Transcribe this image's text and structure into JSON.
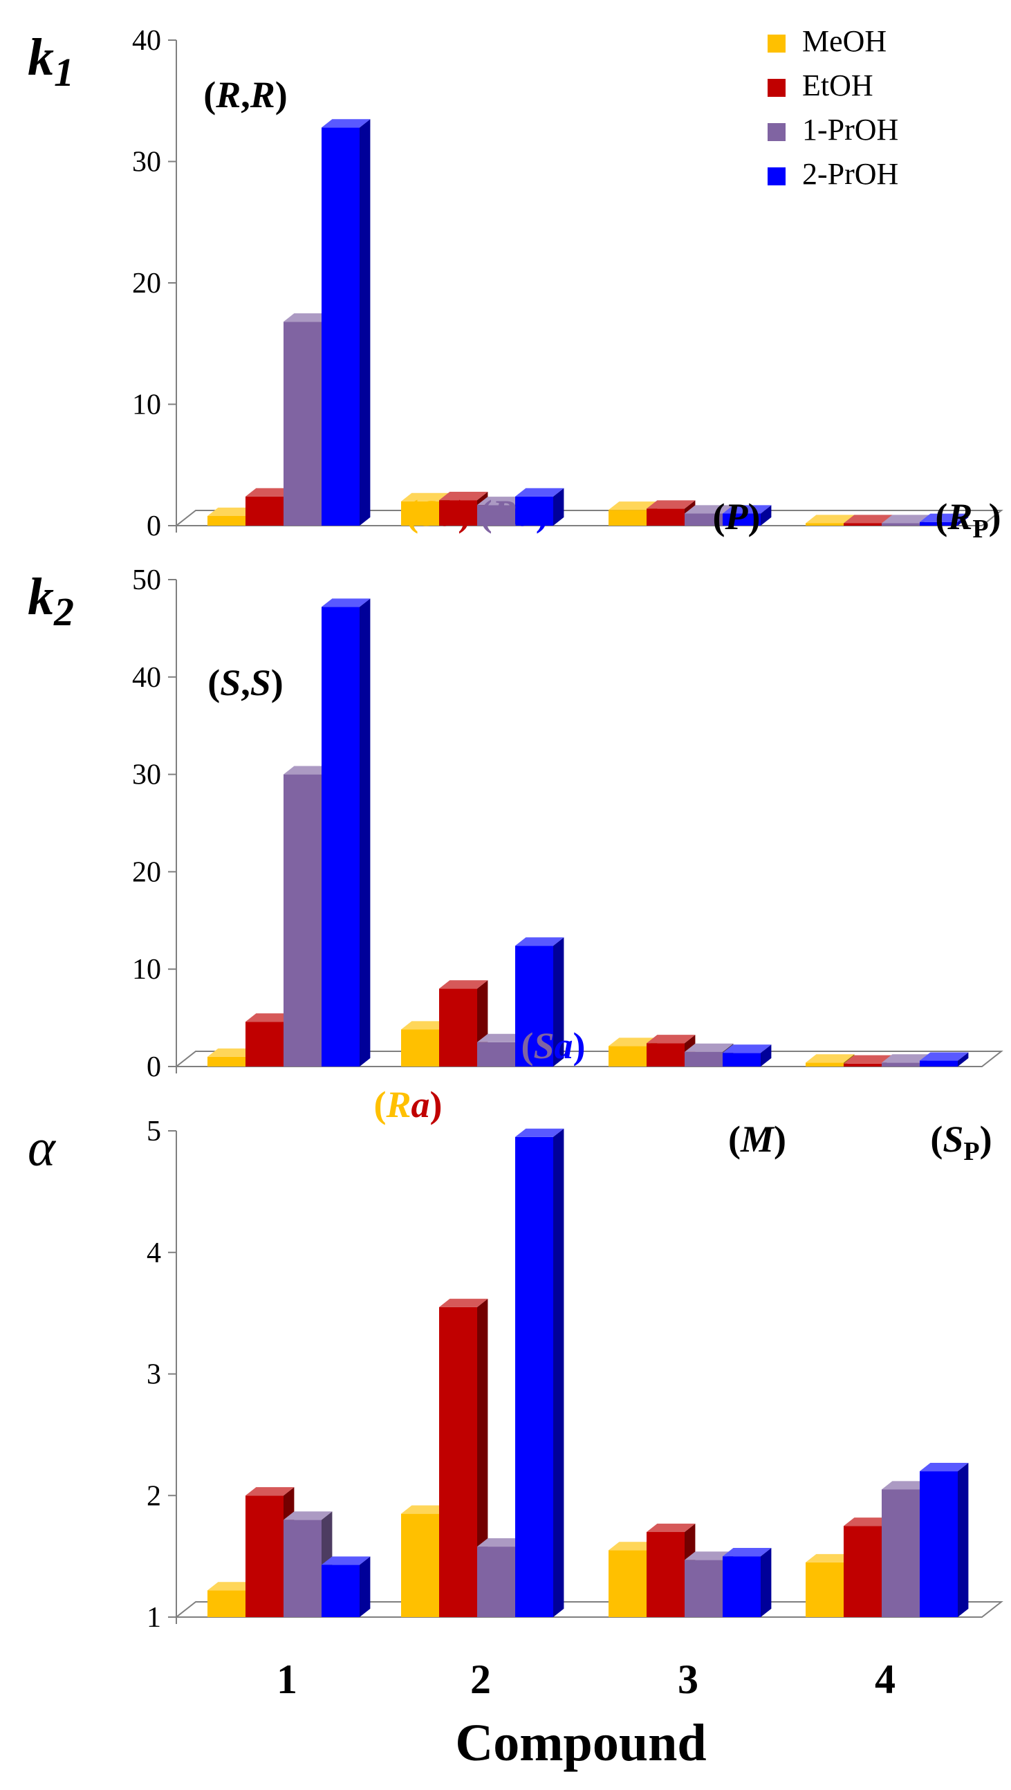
{
  "legend": {
    "placement": "top-right",
    "entries": [
      {
        "name": "MeOH",
        "color": "#FFC000"
      },
      {
        "name": "EtOH",
        "color": "#C00000"
      },
      {
        "name": "1-PrOH",
        "color": "#8064A2"
      },
      {
        "name": "2-PrOH",
        "color": "#0000FF"
      }
    ]
  },
  "chart_data": [
    {
      "type": "bar",
      "ylabel": "k",
      "ylabel_sub": "1",
      "ylim": [
        0,
        40
      ],
      "yticks": [
        "0",
        "10",
        "20",
        "30",
        "40"
      ],
      "categories": [
        "1",
        "2",
        "3",
        "4"
      ],
      "series": [
        {
          "name": "MeOH",
          "values": [
            0.8,
            2.0,
            1.3,
            0.2
          ]
        },
        {
          "name": "EtOH",
          "values": [
            2.4,
            2.1,
            1.4,
            0.2
          ]
        },
        {
          "name": "1-PrOH",
          "values": [
            16.8,
            1.7,
            1.0,
            0.2
          ]
        },
        {
          "name": "2-PrOH",
          "values": [
            32.8,
            2.4,
            1.0,
            0.3
          ]
        }
      ],
      "annotations": [
        {
          "category": 0,
          "parts": [
            {
              "t": "(",
              "c": "#000000",
              "i": false
            },
            {
              "t": "R",
              "c": "#000000",
              "i": true
            },
            {
              "t": ",",
              "c": "#000000",
              "i": false
            },
            {
              "t": "R",
              "c": "#000000",
              "i": true
            },
            {
              "t": ")",
              "c": "#000000",
              "i": false
            }
          ]
        },
        {
          "category": 1,
          "parts": [
            {
              "t": "(",
              "c": "#FFC000",
              "i": false
            },
            {
              "t": "S",
              "c": "#FFC000",
              "i": true
            },
            {
              "t": "a",
              "c": "#C00000",
              "i": true
            },
            {
              "t": ")",
              "c": "#C00000",
              "i": false
            },
            {
              "t": " (",
              "c": "#8064A2",
              "i": false
            },
            {
              "t": "R",
              "c": "#8064A2",
              "i": true
            },
            {
              "t": "a",
              "c": "#0000FF",
              "i": true
            },
            {
              "t": ")",
              "c": "#0000FF",
              "i": false
            }
          ]
        },
        {
          "category": 2,
          "parts": [
            {
              "t": "(",
              "c": "#000000",
              "i": false
            },
            {
              "t": "P",
              "c": "#000000",
              "i": true
            },
            {
              "t": ")",
              "c": "#000000",
              "i": false
            }
          ]
        },
        {
          "category": 3,
          "parts": [
            {
              "t": "(",
              "c": "#000000",
              "i": false
            },
            {
              "t": "R",
              "c": "#000000",
              "i": true
            },
            {
              "t": "P",
              "c": "#000000",
              "i": false,
              "sub": true
            },
            {
              "t": ")",
              "c": "#000000",
              "i": false
            }
          ]
        }
      ]
    },
    {
      "type": "bar",
      "ylabel": "k",
      "ylabel_sub": "2",
      "ylim": [
        0,
        50
      ],
      "yticks": [
        "0",
        "10",
        "20",
        "30",
        "40",
        "50"
      ],
      "categories": [
        "1",
        "2",
        "3",
        "4"
      ],
      "series": [
        {
          "name": "MeOH",
          "values": [
            1.0,
            3.8,
            2.1,
            0.4
          ]
        },
        {
          "name": "EtOH",
          "values": [
            4.6,
            8.0,
            2.4,
            0.3
          ]
        },
        {
          "name": "1-PrOH",
          "values": [
            30.0,
            2.5,
            1.5,
            0.4
          ]
        },
        {
          "name": "2-PrOH",
          "values": [
            47.2,
            12.4,
            1.4,
            0.6
          ]
        }
      ],
      "annotations": [
        {
          "category": 0,
          "parts": [
            {
              "t": "(",
              "c": "#000000",
              "i": false
            },
            {
              "t": "S",
              "c": "#000000",
              "i": true
            },
            {
              "t": ",",
              "c": "#000000",
              "i": false
            },
            {
              "t": "S",
              "c": "#000000",
              "i": true
            },
            {
              "t": ")",
              "c": "#000000",
              "i": false
            }
          ]
        },
        {
          "category": 1,
          "parts": [
            {
              "t": "(",
              "c": "#FFC000",
              "i": false
            },
            {
              "t": "R",
              "c": "#FFC000",
              "i": true
            },
            {
              "t": "a",
              "c": "#C00000",
              "i": true
            },
            {
              "t": ")",
              "c": "#C00000",
              "i": false
            }
          ]
        },
        {
          "category": 1,
          "parts": [
            {
              "t": "(",
              "c": "#8064A2",
              "i": false
            },
            {
              "t": "S",
              "c": "#8064A2",
              "i": true
            },
            {
              "t": "a",
              "c": "#0000FF",
              "i": true
            },
            {
              "t": ")",
              "c": "#0000FF",
              "i": false
            }
          ]
        },
        {
          "category": 2,
          "parts": [
            {
              "t": "(",
              "c": "#000000",
              "i": false
            },
            {
              "t": "M",
              "c": "#000000",
              "i": true
            },
            {
              "t": ")",
              "c": "#000000",
              "i": false
            }
          ]
        },
        {
          "category": 3,
          "parts": [
            {
              "t": "(",
              "c": "#000000",
              "i": false
            },
            {
              "t": "S",
              "c": "#000000",
              "i": true
            },
            {
              "t": "P",
              "c": "#000000",
              "i": false,
              "sub": true
            },
            {
              "t": ")",
              "c": "#000000",
              "i": false
            }
          ]
        }
      ]
    },
    {
      "type": "bar",
      "ylabel": "α",
      "ylim": [
        1,
        5
      ],
      "yticks": [
        "1",
        "2",
        "3",
        "4",
        "5"
      ],
      "categories": [
        "1",
        "2",
        "3",
        "4"
      ],
      "xlabel": "Compound",
      "series": [
        {
          "name": "MeOH",
          "values": [
            1.22,
            1.85,
            1.55,
            1.45
          ]
        },
        {
          "name": "EtOH",
          "values": [
            2.0,
            3.55,
            1.7,
            1.75
          ]
        },
        {
          "name": "1-PrOH",
          "values": [
            1.8,
            1.58,
            1.47,
            2.05
          ]
        },
        {
          "name": "2-PrOH",
          "values": [
            1.43,
            4.95,
            1.5,
            2.2
          ]
        }
      ],
      "annotations": []
    }
  ]
}
